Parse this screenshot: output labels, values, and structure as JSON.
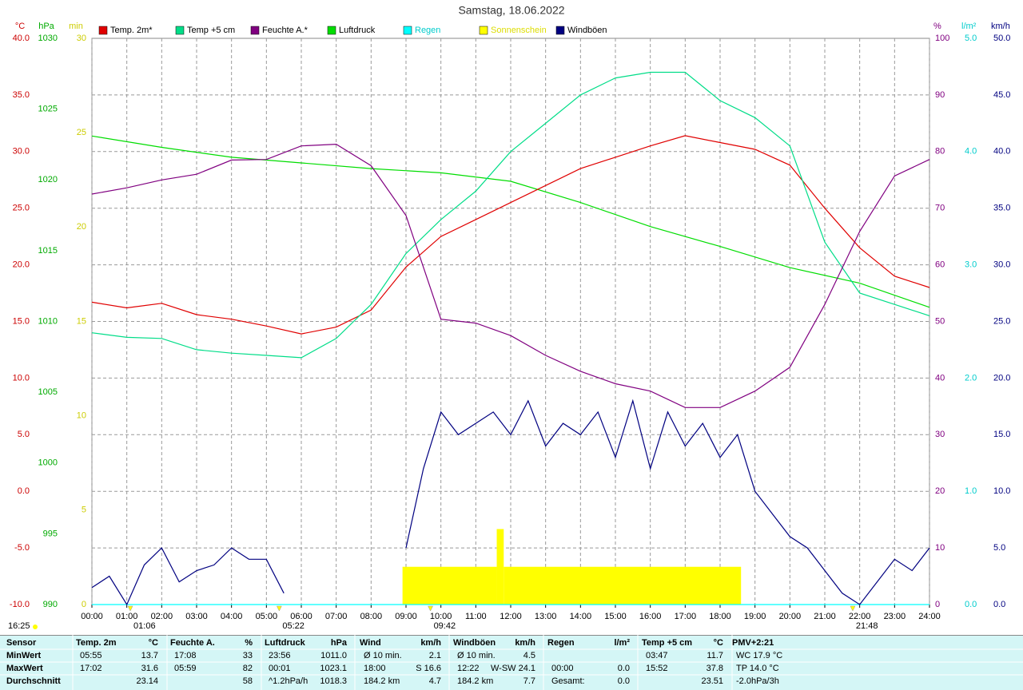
{
  "chart_data": {
    "type": "line",
    "title": "Samstag, 18.06.2022",
    "time_label": "16:25",
    "xlim": [
      0,
      24
    ],
    "xticks": [
      {
        "value": 0,
        "label": "00:00"
      },
      {
        "value": 1,
        "label": "01:00"
      },
      {
        "value": 2,
        "label": "02:00"
      },
      {
        "value": 3,
        "label": "03:00"
      },
      {
        "value": 4,
        "label": "04:00"
      },
      {
        "value": 5,
        "label": "05:00"
      },
      {
        "value": 6,
        "label": "06:00"
      },
      {
        "value": 7,
        "label": "07:00"
      },
      {
        "value": 8,
        "label": "08:00"
      },
      {
        "value": 9,
        "label": "09:00"
      },
      {
        "value": 10,
        "label": "10:00"
      },
      {
        "value": 11,
        "label": "11:00"
      },
      {
        "value": 12,
        "label": "12:00"
      },
      {
        "value": 13,
        "label": "13:00"
      },
      {
        "value": 14,
        "label": "14:00"
      },
      {
        "value": 15,
        "label": "15:00"
      },
      {
        "value": 16,
        "label": "16:00"
      },
      {
        "value": 17,
        "label": "17:00"
      },
      {
        "value": 18,
        "label": "18:00"
      },
      {
        "value": 19,
        "label": "19:00"
      },
      {
        "value": 20,
        "label": "20:00"
      },
      {
        "value": 21,
        "label": "21:00"
      },
      {
        "value": 22,
        "label": "22:00"
      },
      {
        "value": 23,
        "label": "23:00"
      },
      {
        "value": 24,
        "label": "24:00"
      }
    ],
    "grid": true,
    "axes": [
      {
        "label": "°C",
        "color": "#cc0000",
        "side": "left",
        "lim": [
          -10,
          40
        ],
        "ticks": [
          {
            "value": -10,
            "label": "-10.0"
          },
          {
            "value": -5,
            "label": "-5.0"
          },
          {
            "value": 0,
            "label": "0.0"
          },
          {
            "value": 5,
            "label": "5.0"
          },
          {
            "value": 10,
            "label": "10.0"
          },
          {
            "value": 15,
            "label": "15.0"
          },
          {
            "value": 20,
            "label": "20.0"
          },
          {
            "value": 25,
            "label": "25.0"
          },
          {
            "value": 30,
            "label": "30.0"
          },
          {
            "value": 35,
            "label": "35.0"
          },
          {
            "value": 40,
            "label": "40.0"
          }
        ]
      },
      {
        "label": "hPa",
        "color": "#00aa00",
        "side": "left",
        "lim": [
          990,
          1030
        ],
        "ticks": [
          990,
          995,
          1000,
          1005,
          1010,
          1015,
          1020,
          1025,
          1030
        ]
      },
      {
        "label": "min",
        "color": "#cccc00",
        "side": "left",
        "lim": [
          0,
          30
        ],
        "ticks": [
          0,
          5,
          10,
          15,
          20,
          25,
          30
        ]
      },
      {
        "label": "%",
        "color": "#800080",
        "side": "right",
        "lim": [
          0,
          100
        ],
        "ticks": [
          0,
          10,
          20,
          30,
          40,
          50,
          60,
          70,
          80,
          90,
          100
        ]
      },
      {
        "label": "l/m²",
        "color": "#00cccc",
        "side": "right",
        "lim": [
          0,
          5
        ],
        "ticks": [
          {
            "value": 0,
            "label": "0.0"
          },
          {
            "value": 1,
            "label": "1.0"
          },
          {
            "value": 2,
            "label": "2.0"
          },
          {
            "value": 3,
            "label": "3.0"
          },
          {
            "value": 4,
            "label": "4.0"
          },
          {
            "value": 5,
            "label": "5.0"
          }
        ]
      },
      {
        "label": "km/h",
        "color": "#000080",
        "side": "right",
        "lim": [
          0,
          50
        ],
        "ticks": [
          {
            "value": 0,
            "label": "0.0"
          },
          {
            "value": 5,
            "label": "5.0"
          },
          {
            "value": 10,
            "label": "10.0"
          },
          {
            "value": 15,
            "label": "15.0"
          },
          {
            "value": 20,
            "label": "20.0"
          },
          {
            "value": 25,
            "label": "25.0"
          },
          {
            "value": 30,
            "label": "30.0"
          },
          {
            "value": 35,
            "label": "35.0"
          },
          {
            "value": 40,
            "label": "40.0"
          },
          {
            "value": 45,
            "label": "45.0"
          },
          {
            "value": 50,
            "label": "50.0"
          }
        ]
      }
    ],
    "series": [
      {
        "name": "Temp. 2m*",
        "color": "#e00000",
        "axis": 0,
        "kind": "line",
        "x": [
          0,
          1,
          2,
          3,
          4,
          5,
          6,
          7,
          8,
          9,
          10,
          11,
          12,
          13,
          14,
          15,
          16,
          17,
          18,
          19,
          20,
          21,
          22,
          23,
          24
        ],
        "values": [
          16.7,
          16.2,
          16.6,
          15.6,
          15.2,
          14.6,
          13.9,
          14.5,
          16.0,
          19.8,
          22.5,
          24.0,
          25.5,
          27.0,
          28.5,
          29.5,
          30.5,
          31.4,
          30.8,
          30.2,
          28.8,
          25.0,
          21.5,
          19.0,
          18.0
        ]
      },
      {
        "name": "Temp +5 cm",
        "color": "#00dd88",
        "axis": 0,
        "kind": "line",
        "x": [
          0,
          1,
          2,
          3,
          4,
          5,
          6,
          7,
          8,
          9,
          10,
          11,
          12,
          13,
          14,
          15,
          16,
          17,
          18,
          19,
          20,
          21,
          22,
          23,
          24
        ],
        "values": [
          14.0,
          13.6,
          13.5,
          12.5,
          12.2,
          12.0,
          11.8,
          13.5,
          16.5,
          21.0,
          24.0,
          26.5,
          30.0,
          32.5,
          35.0,
          36.5,
          37.0,
          37.0,
          34.5,
          33.0,
          30.5,
          22.0,
          17.5,
          16.5,
          15.5
        ]
      },
      {
        "name": "Feuchte A.*",
        "color": "#800080",
        "axis": 3,
        "kind": "line",
        "x": [
          0,
          1,
          2,
          3,
          4,
          5,
          6,
          7,
          8,
          9,
          10,
          11,
          12,
          13,
          14,
          15,
          16,
          17,
          18,
          19,
          20,
          21,
          22,
          23,
          24
        ],
        "values": [
          72.5,
          73.6,
          75,
          76,
          78.5,
          78.6,
          81,
          81.3,
          77.5,
          68.7,
          50.4,
          49.7,
          47.5,
          44,
          41.2,
          39,
          37.7,
          34.8,
          34.8,
          37.7,
          41.9,
          53,
          65.9,
          75.7,
          78.6
        ]
      },
      {
        "name": "Luftdruck",
        "color": "#00dd00",
        "axis": 1,
        "kind": "line",
        "x": [
          0,
          2,
          4,
          6,
          8,
          10,
          12,
          14,
          16,
          18,
          20,
          22,
          24
        ],
        "values": [
          1023.1,
          1022.3,
          1021.6,
          1021.2,
          1020.8,
          1020.5,
          1019.9,
          1018.4,
          1016.7,
          1015.3,
          1013.8,
          1012.7,
          1011.0
        ]
      },
      {
        "name": "Regen",
        "color": "#00ffff",
        "legend_color": "#00cccc",
        "axis": 4,
        "kind": "line",
        "x": [
          0,
          24
        ],
        "values": [
          0,
          0
        ]
      },
      {
        "name": "Sonnenschein",
        "color": "#ffff00",
        "legend_color": "#dddd00",
        "axis": 2,
        "kind": "bars",
        "bins": [
          8.9,
          11.6,
          11.8,
          18.6
        ],
        "values": [
          2,
          4,
          2
        ]
      },
      {
        "name": "Windböen",
        "color": "#000080",
        "axis": 5,
        "kind": "line",
        "x": [
          0,
          0.5,
          1,
          1.5,
          2,
          2.5,
          3,
          3.5,
          4,
          4.5,
          5,
          5.5,
          6,
          6.5,
          7,
          7.5,
          8,
          8.5,
          9,
          9.5,
          10,
          10.5,
          11,
          11.5,
          12,
          12.5,
          13,
          13.5,
          14,
          14.5,
          15,
          15.5,
          16,
          16.5,
          17,
          17.5,
          18,
          18.5,
          19,
          19.5,
          20,
          20.5,
          21,
          21.5,
          22,
          22.5,
          23,
          23.5,
          24
        ],
        "values": [
          1.5,
          2.5,
          0,
          3.5,
          5,
          2,
          3,
          3.5,
          5,
          4,
          4,
          1,
          null,
          null,
          null,
          null,
          null,
          null,
          5,
          12,
          17,
          15,
          16,
          17,
          15,
          18,
          14,
          16,
          15,
          17,
          13,
          18,
          12,
          17,
          14,
          16,
          13,
          15,
          10,
          8,
          6,
          5,
          3,
          1,
          0,
          2,
          4,
          3,
          5
        ]
      }
    ],
    "annotations": [
      {
        "text": "01:06",
        "x": 1.1
      },
      {
        "text": "05:22",
        "x": 5.367
      },
      {
        "text": "09:42",
        "x": 9.7
      },
      {
        "text": "21:48",
        "x": 21.8
      }
    ]
  },
  "table": {
    "header": [
      "Sensor",
      "Temp. 2m",
      "°C",
      "Feuchte A.",
      "%",
      "Luftdruck",
      "hPa",
      "Wind",
      "km/h",
      "Windböen",
      "km/h",
      "Regen",
      "l/m²",
      "Temp +5 cm",
      "°C",
      "PMV+2:21"
    ],
    "rows": [
      [
        "MinWert",
        "05:55",
        "13.7",
        "17:08",
        "33",
        "23:56",
        "1011.0",
        "Ø 10 min.",
        "2.1",
        "Ø 10 min.",
        "4.5",
        null,
        null,
        "03:47",
        "11.7",
        "WC 17.9 °C"
      ],
      [
        "MaxWert",
        "17:02",
        "31.6",
        "05:59",
        "82",
        "00:01",
        "1023.1",
        "18:00",
        "S 16.6",
        "12:22",
        "W-SW 24.1",
        "00:00",
        "0.0",
        "15:52",
        "37.8",
        "TP 14.0 °C"
      ],
      [
        "Durchschnitt",
        null,
        "23.14",
        null,
        "58",
        "^1.2hPa/h",
        "1018.3",
        "184.2 km",
        "4.7",
        "184.2 km",
        "7.7",
        "Gesamt:",
        "0.0",
        null,
        "23.51",
        "-2.0hPa/3h"
      ]
    ]
  }
}
